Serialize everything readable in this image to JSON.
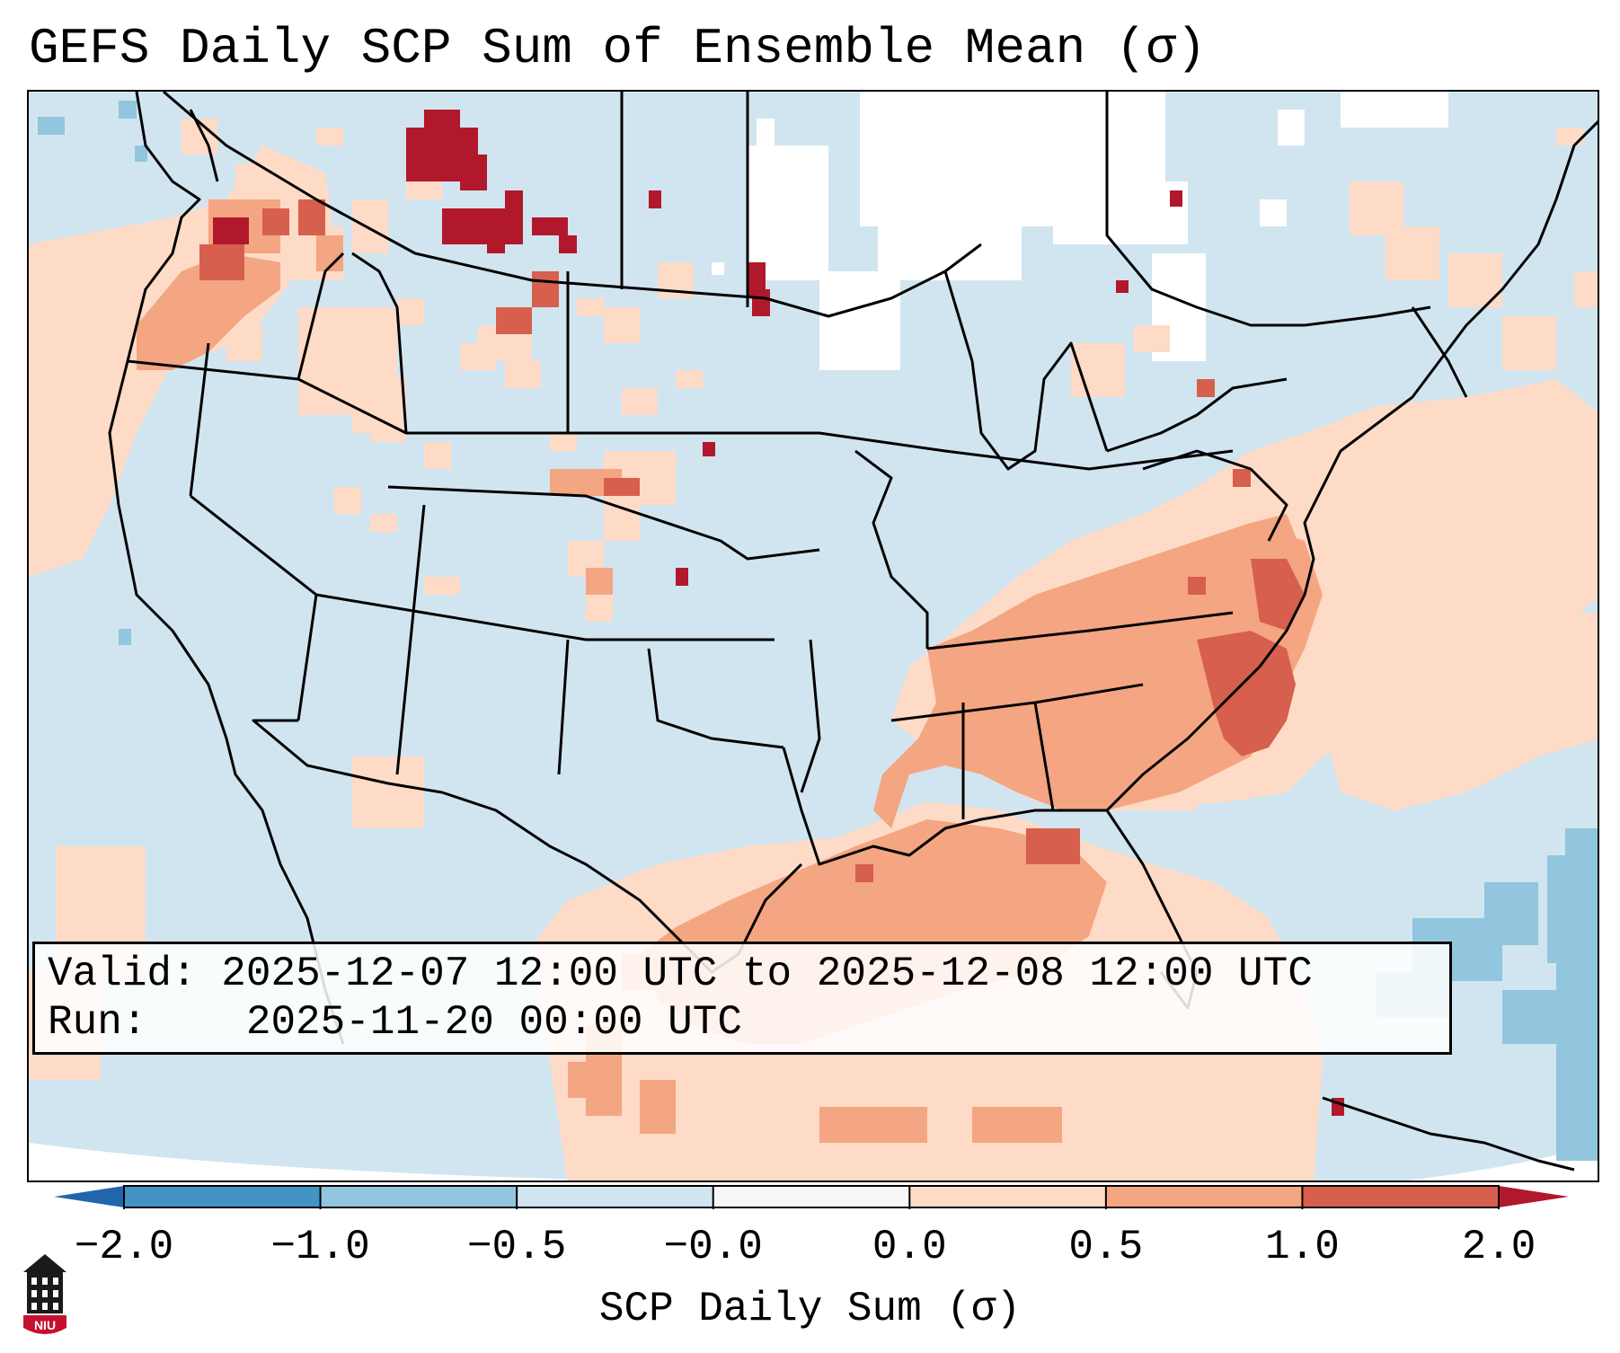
{
  "title": "GEFS Daily SCP Sum of Ensemble Mean (σ)",
  "info": {
    "valid_label": "Valid:",
    "valid_value": "2025-12-07 12:00 UTC to 2025-12-08 12:00 UTC",
    "run_label": "Run:",
    "run_value": "2025-11-20 00:00 UTC"
  },
  "colorbar": {
    "title": "SCP Daily Sum (σ)",
    "ticks": [
      "−2.0",
      "−1.0",
      "−0.5",
      "−0.0",
      "0.0",
      "0.5",
      "1.0",
      "2.0"
    ],
    "bins": [
      {
        "from": -2.0,
        "to": -1.0,
        "color": "#4393c3"
      },
      {
        "from": -1.0,
        "to": -0.5,
        "color": "#92c5de"
      },
      {
        "from": -0.5,
        "to": -0.0,
        "color": "#d1e5f0"
      },
      {
        "from": -0.0,
        "to": 0.0,
        "color": "#f7f7f7"
      },
      {
        "from": 0.0,
        "to": 0.5,
        "color": "#fddbc7"
      },
      {
        "from": 0.5,
        "to": 1.0,
        "color": "#f4a582"
      },
      {
        "from": 1.0,
        "to": 2.0,
        "color": "#d6604d"
      }
    ],
    "under_color": "#2166ac",
    "over_color": "#b2182b"
  },
  "colors": {
    "background_field": "#d1e5f0",
    "near_zero": "#ffffff",
    "light_pos": "#fddbc7",
    "mid_pos": "#f4a582",
    "high_pos": "#d6604d",
    "extreme_pos": "#b2182b",
    "light_neg": "#92c5de",
    "borders": "#000000"
  },
  "logo": {
    "icon": "university-building-icon",
    "text": "NIU"
  }
}
